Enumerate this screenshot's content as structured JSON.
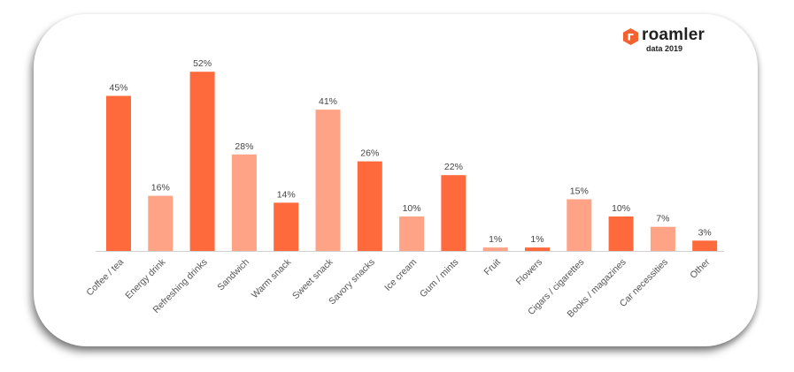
{
  "brand": {
    "name": "roamler",
    "subtitle": "data 2019",
    "mark_color": "#f26231"
  },
  "chart_data": {
    "type": "bar",
    "title": "",
    "xlabel": "",
    "ylabel": "",
    "ylim": [
      0,
      60
    ],
    "grid": false,
    "legend": "none",
    "value_suffix": "%",
    "colors": {
      "dark": "#ff6a3d",
      "light": "#ffa386"
    },
    "categories": [
      "Coffee / tea",
      "Energy drink",
      "Refreshing drinks",
      "Sandwich",
      "Warm snack",
      "Sweet snack",
      "Savory snacks",
      "Ice cream",
      "Gum / mints",
      "Fruit",
      "Flowers",
      "Cigars / cigarettes",
      "Books / magazines",
      "Car necessities",
      "Other"
    ],
    "values": [
      45,
      16,
      52,
      28,
      14,
      41,
      26,
      10,
      22,
      1,
      1,
      15,
      10,
      7,
      3
    ],
    "bar_shades": [
      "dark",
      "light",
      "dark",
      "light",
      "dark",
      "light",
      "dark",
      "light",
      "dark",
      "light",
      "dark",
      "light",
      "dark",
      "light",
      "dark"
    ]
  }
}
